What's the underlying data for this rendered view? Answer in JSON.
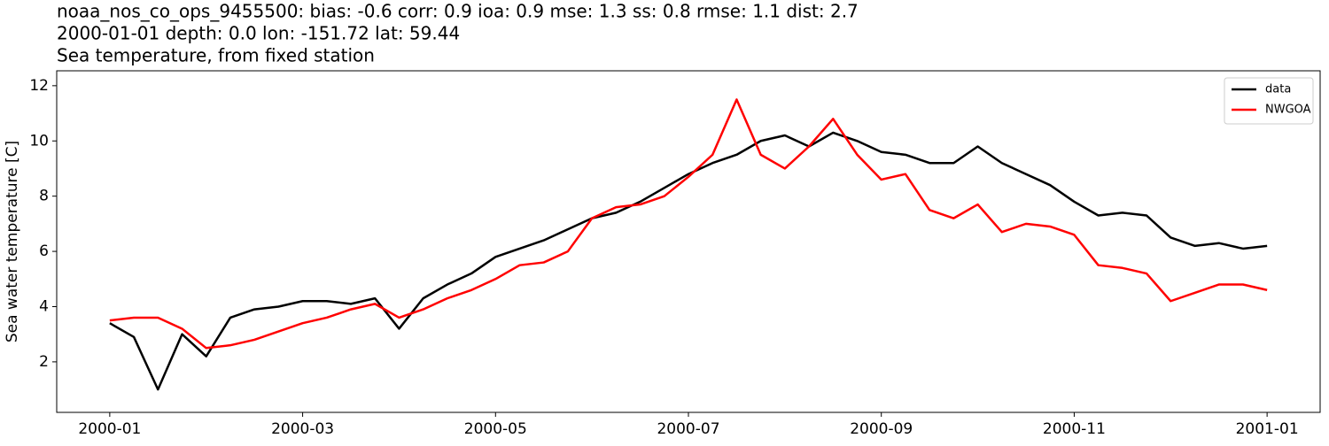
{
  "chart_data": {
    "type": "line",
    "title_lines": [
      "noaa_nos_co_ops_9455500: bias: -0.6  corr: 0.9  ioa: 0.9  mse: 1.3  ss: 0.8  rmse: 1.1  dist: 2.7",
      "2000-01-01 depth: 0.0 lon: -151.72 lat: 59.44",
      "Sea temperature, from fixed station"
    ],
    "y_label": "Sea water temperature [C]",
    "x": [
      0,
      0.25,
      0.5,
      0.75,
      1,
      1.25,
      1.5,
      1.75,
      2,
      2.25,
      2.5,
      2.75,
      3,
      3.25,
      3.5,
      3.75,
      4,
      4.25,
      4.5,
      4.75,
      5,
      5.25,
      5.5,
      5.75,
      6,
      6.25,
      6.5,
      6.75,
      7,
      7.25,
      7.5,
      7.75,
      8,
      8.25,
      8.5,
      8.75,
      9,
      9.25,
      9.5,
      9.75,
      10,
      10.25,
      10.5,
      10.75,
      11,
      11.25,
      11.5,
      11.75,
      12
    ],
    "series": [
      {
        "name": "data",
        "color": "#000000",
        "values": [
          3.4,
          2.9,
          1.0,
          3.0,
          2.2,
          3.6,
          3.9,
          4.0,
          4.2,
          4.2,
          4.1,
          4.3,
          3.2,
          4.3,
          4.8,
          5.2,
          5.8,
          6.1,
          6.4,
          6.8,
          7.2,
          7.4,
          7.8,
          8.3,
          8.8,
          9.2,
          9.5,
          10.0,
          10.2,
          9.8,
          10.3,
          10.0,
          9.6,
          9.5,
          9.2,
          9.2,
          9.8,
          9.2,
          8.8,
          8.4,
          7.8,
          7.3,
          7.4,
          7.3,
          6.5,
          6.2,
          6.3,
          6.1,
          6.2
        ]
      },
      {
        "name": "NWGOA",
        "color": "#ff0000",
        "values": [
          3.5,
          3.6,
          3.6,
          3.2,
          2.5,
          2.6,
          2.8,
          3.1,
          3.4,
          3.6,
          3.9,
          4.1,
          3.6,
          3.9,
          4.3,
          4.6,
          5.0,
          5.5,
          5.6,
          6.0,
          7.2,
          7.6,
          7.7,
          8.0,
          8.7,
          9.5,
          11.5,
          9.5,
          9.0,
          9.8,
          10.8,
          9.5,
          8.6,
          8.8,
          7.5,
          7.2,
          7.7,
          6.7,
          7.0,
          6.9,
          6.6,
          5.5,
          5.4,
          5.2,
          4.2,
          4.5,
          4.8,
          4.8,
          4.6
        ]
      }
    ],
    "xlim": [
      -0.55,
      12.55
    ],
    "xticks": [
      {
        "value": 0,
        "label": "2000-01"
      },
      {
        "value": 2,
        "label": "2000-03"
      },
      {
        "value": 4,
        "label": "2000-05"
      },
      {
        "value": 6,
        "label": "2000-07"
      },
      {
        "value": 8,
        "label": "2000-09"
      },
      {
        "value": 10,
        "label": "2000-11"
      },
      {
        "value": 12,
        "label": "2001-01"
      }
    ],
    "ylim": [
      0.17,
      12.54
    ],
    "yticks": [
      2,
      4,
      6,
      8,
      10,
      12
    ],
    "legend": "upper right"
  }
}
